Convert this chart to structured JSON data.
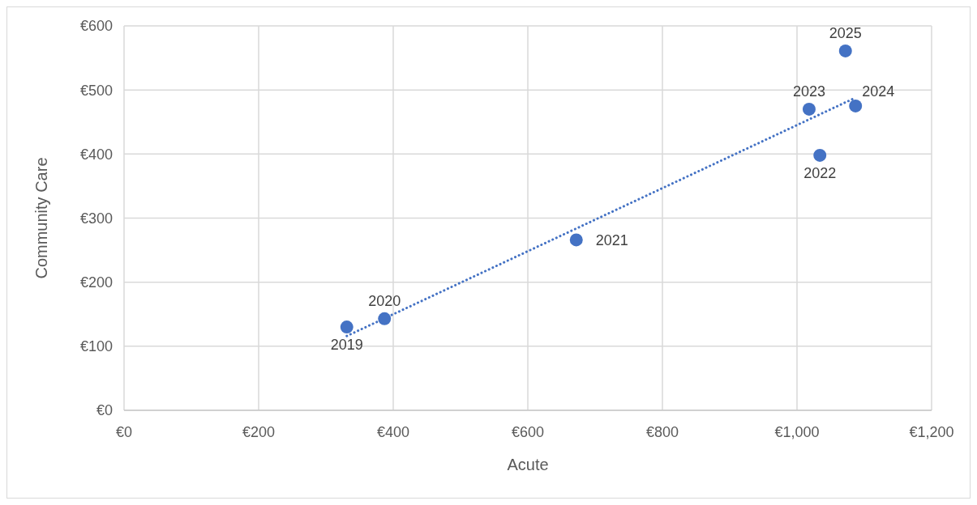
{
  "chart_data": {
    "type": "scatter",
    "xlabel": "Acute",
    "ylabel": "Community Care",
    "xlim": [
      0,
      1200
    ],
    "xticks": [
      {
        "value": 0,
        "label": "€0"
      },
      {
        "value": 200,
        "label": "€200"
      },
      {
        "value": 400,
        "label": "€400"
      },
      {
        "value": 600,
        "label": "€600"
      },
      {
        "value": 800,
        "label": "€800"
      },
      {
        "value": 1000,
        "label": "€1,000"
      },
      {
        "value": 1200,
        "label": "€1,200"
      }
    ],
    "ylim": [
      0,
      600
    ],
    "yticks": [
      {
        "value": 0,
        "label": "€0"
      },
      {
        "value": 100,
        "label": "€100"
      },
      {
        "value": 200,
        "label": "€200"
      },
      {
        "value": 300,
        "label": "€300"
      },
      {
        "value": 400,
        "label": "€400"
      },
      {
        "value": 500,
        "label": "€500"
      },
      {
        "value": 600,
        "label": "€600"
      }
    ],
    "grid": true,
    "annotations": [
      {
        "text": "2019",
        "x": 331,
        "y": 130
      },
      {
        "text": "2020",
        "x": 387,
        "y": 143
      },
      {
        "text": "2021",
        "x": 672,
        "y": 266
      },
      {
        "text": "2022",
        "x": 1034,
        "y": 398
      },
      {
        "text": "2023",
        "x": 1018,
        "y": 470
      },
      {
        "text": "2024",
        "x": 1087,
        "y": 475
      },
      {
        "text": "2025",
        "x": 1072,
        "y": 561
      }
    ],
    "series": [
      {
        "color": "#4472c4",
        "marker": "circle",
        "x": [
          331,
          387,
          672,
          1034,
          1018,
          1087,
          1072
        ],
        "values": [
          130,
          143,
          266,
          398,
          470,
          475,
          561
        ]
      },
      {
        "type": "line",
        "color": "#4472c4",
        "line_style": "dotted",
        "x": [
          331,
          1087
        ],
        "values": [
          116,
          488
        ]
      }
    ]
  }
}
